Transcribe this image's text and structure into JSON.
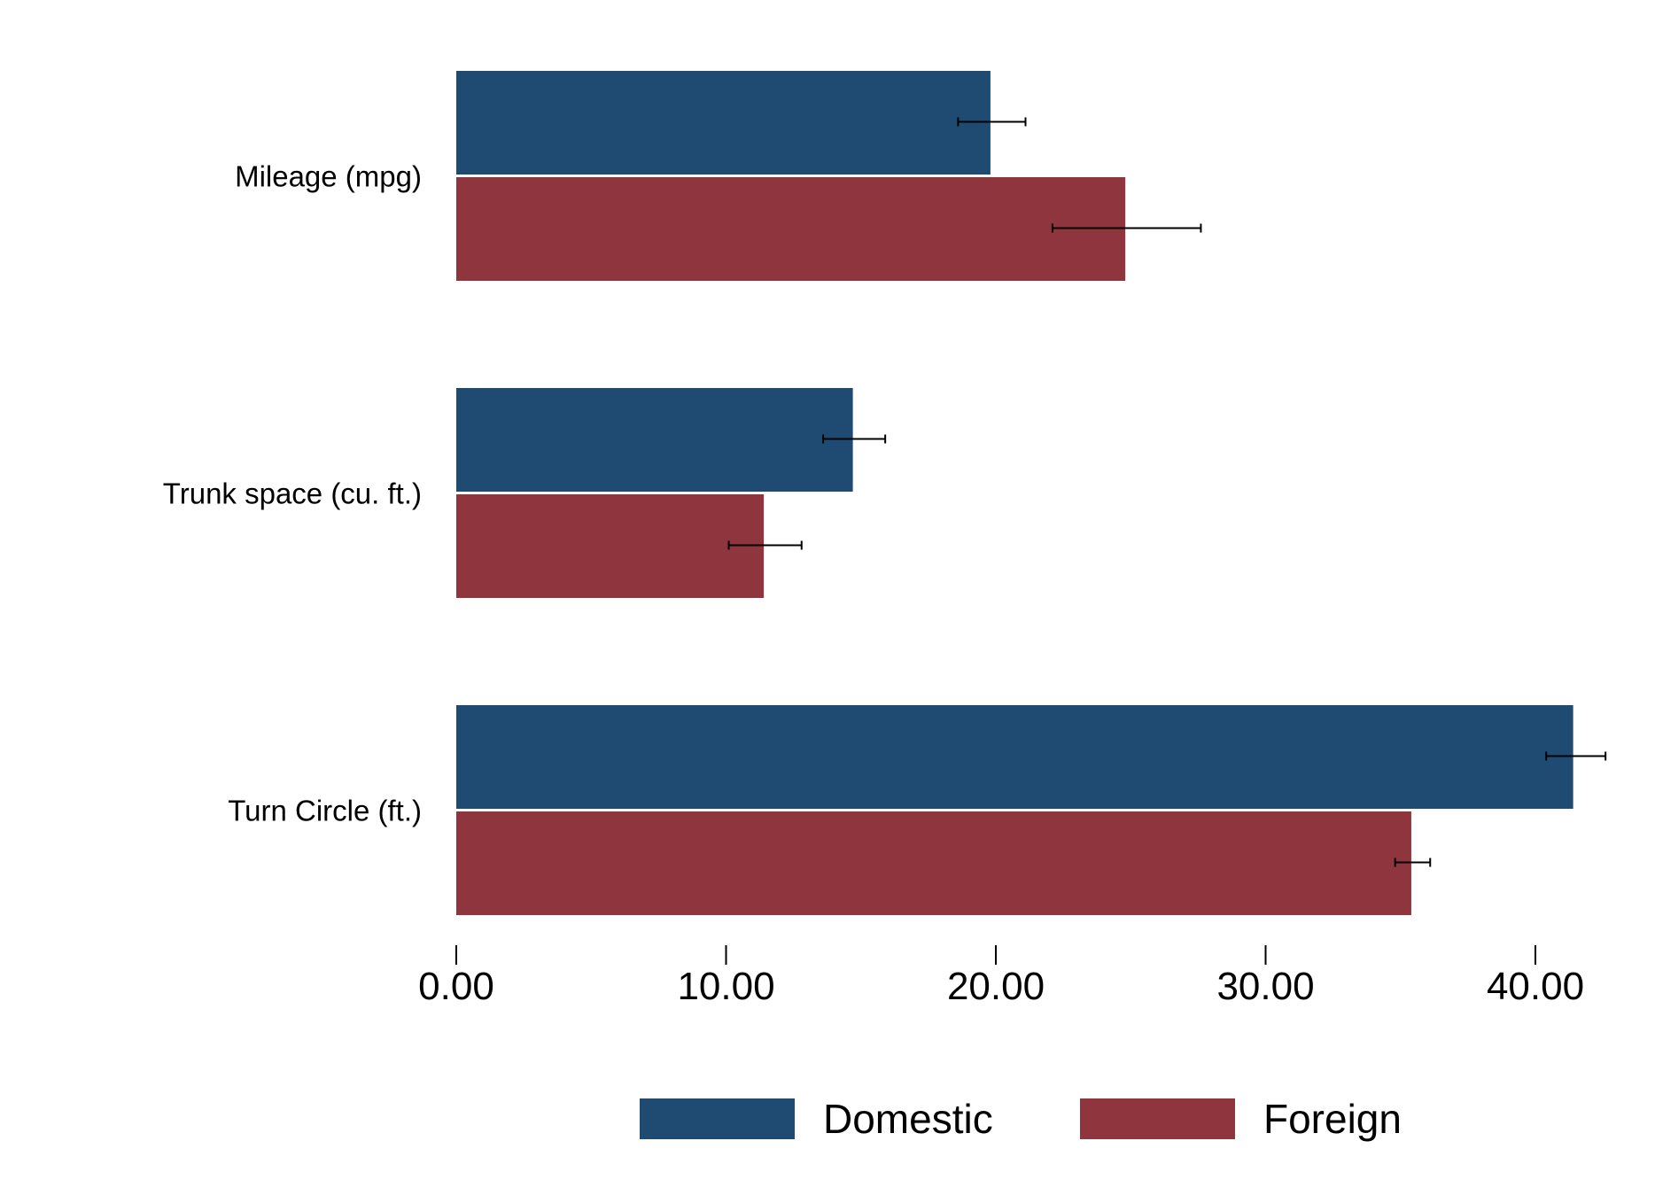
{
  "chart_data": {
    "type": "bar",
    "orientation": "horizontal",
    "categories": [
      "Mileage (mpg)",
      "Trunk space (cu. ft.)",
      "Turn Circle (ft.)"
    ],
    "series": [
      {
        "name": "Domestic",
        "color": "#1f4a72",
        "values": [
          19.8,
          14.7,
          41.4
        ],
        "error_low": [
          18.6,
          13.6,
          40.4
        ],
        "error_high": [
          21.1,
          15.9,
          42.6
        ]
      },
      {
        "name": "Foreign",
        "color": "#8e353d",
        "values": [
          24.8,
          11.4,
          35.4
        ],
        "error_low": [
          22.1,
          10.1,
          34.8
        ],
        "error_high": [
          27.6,
          12.8,
          36.1
        ]
      }
    ],
    "xlim": [
      0,
      42
    ],
    "xticks": [
      0,
      10,
      20,
      30,
      40
    ],
    "xtick_labels": [
      "0.00",
      "10.00",
      "20.00",
      "30.00",
      "40.00"
    ],
    "legend": "bottom",
    "grid": false
  }
}
